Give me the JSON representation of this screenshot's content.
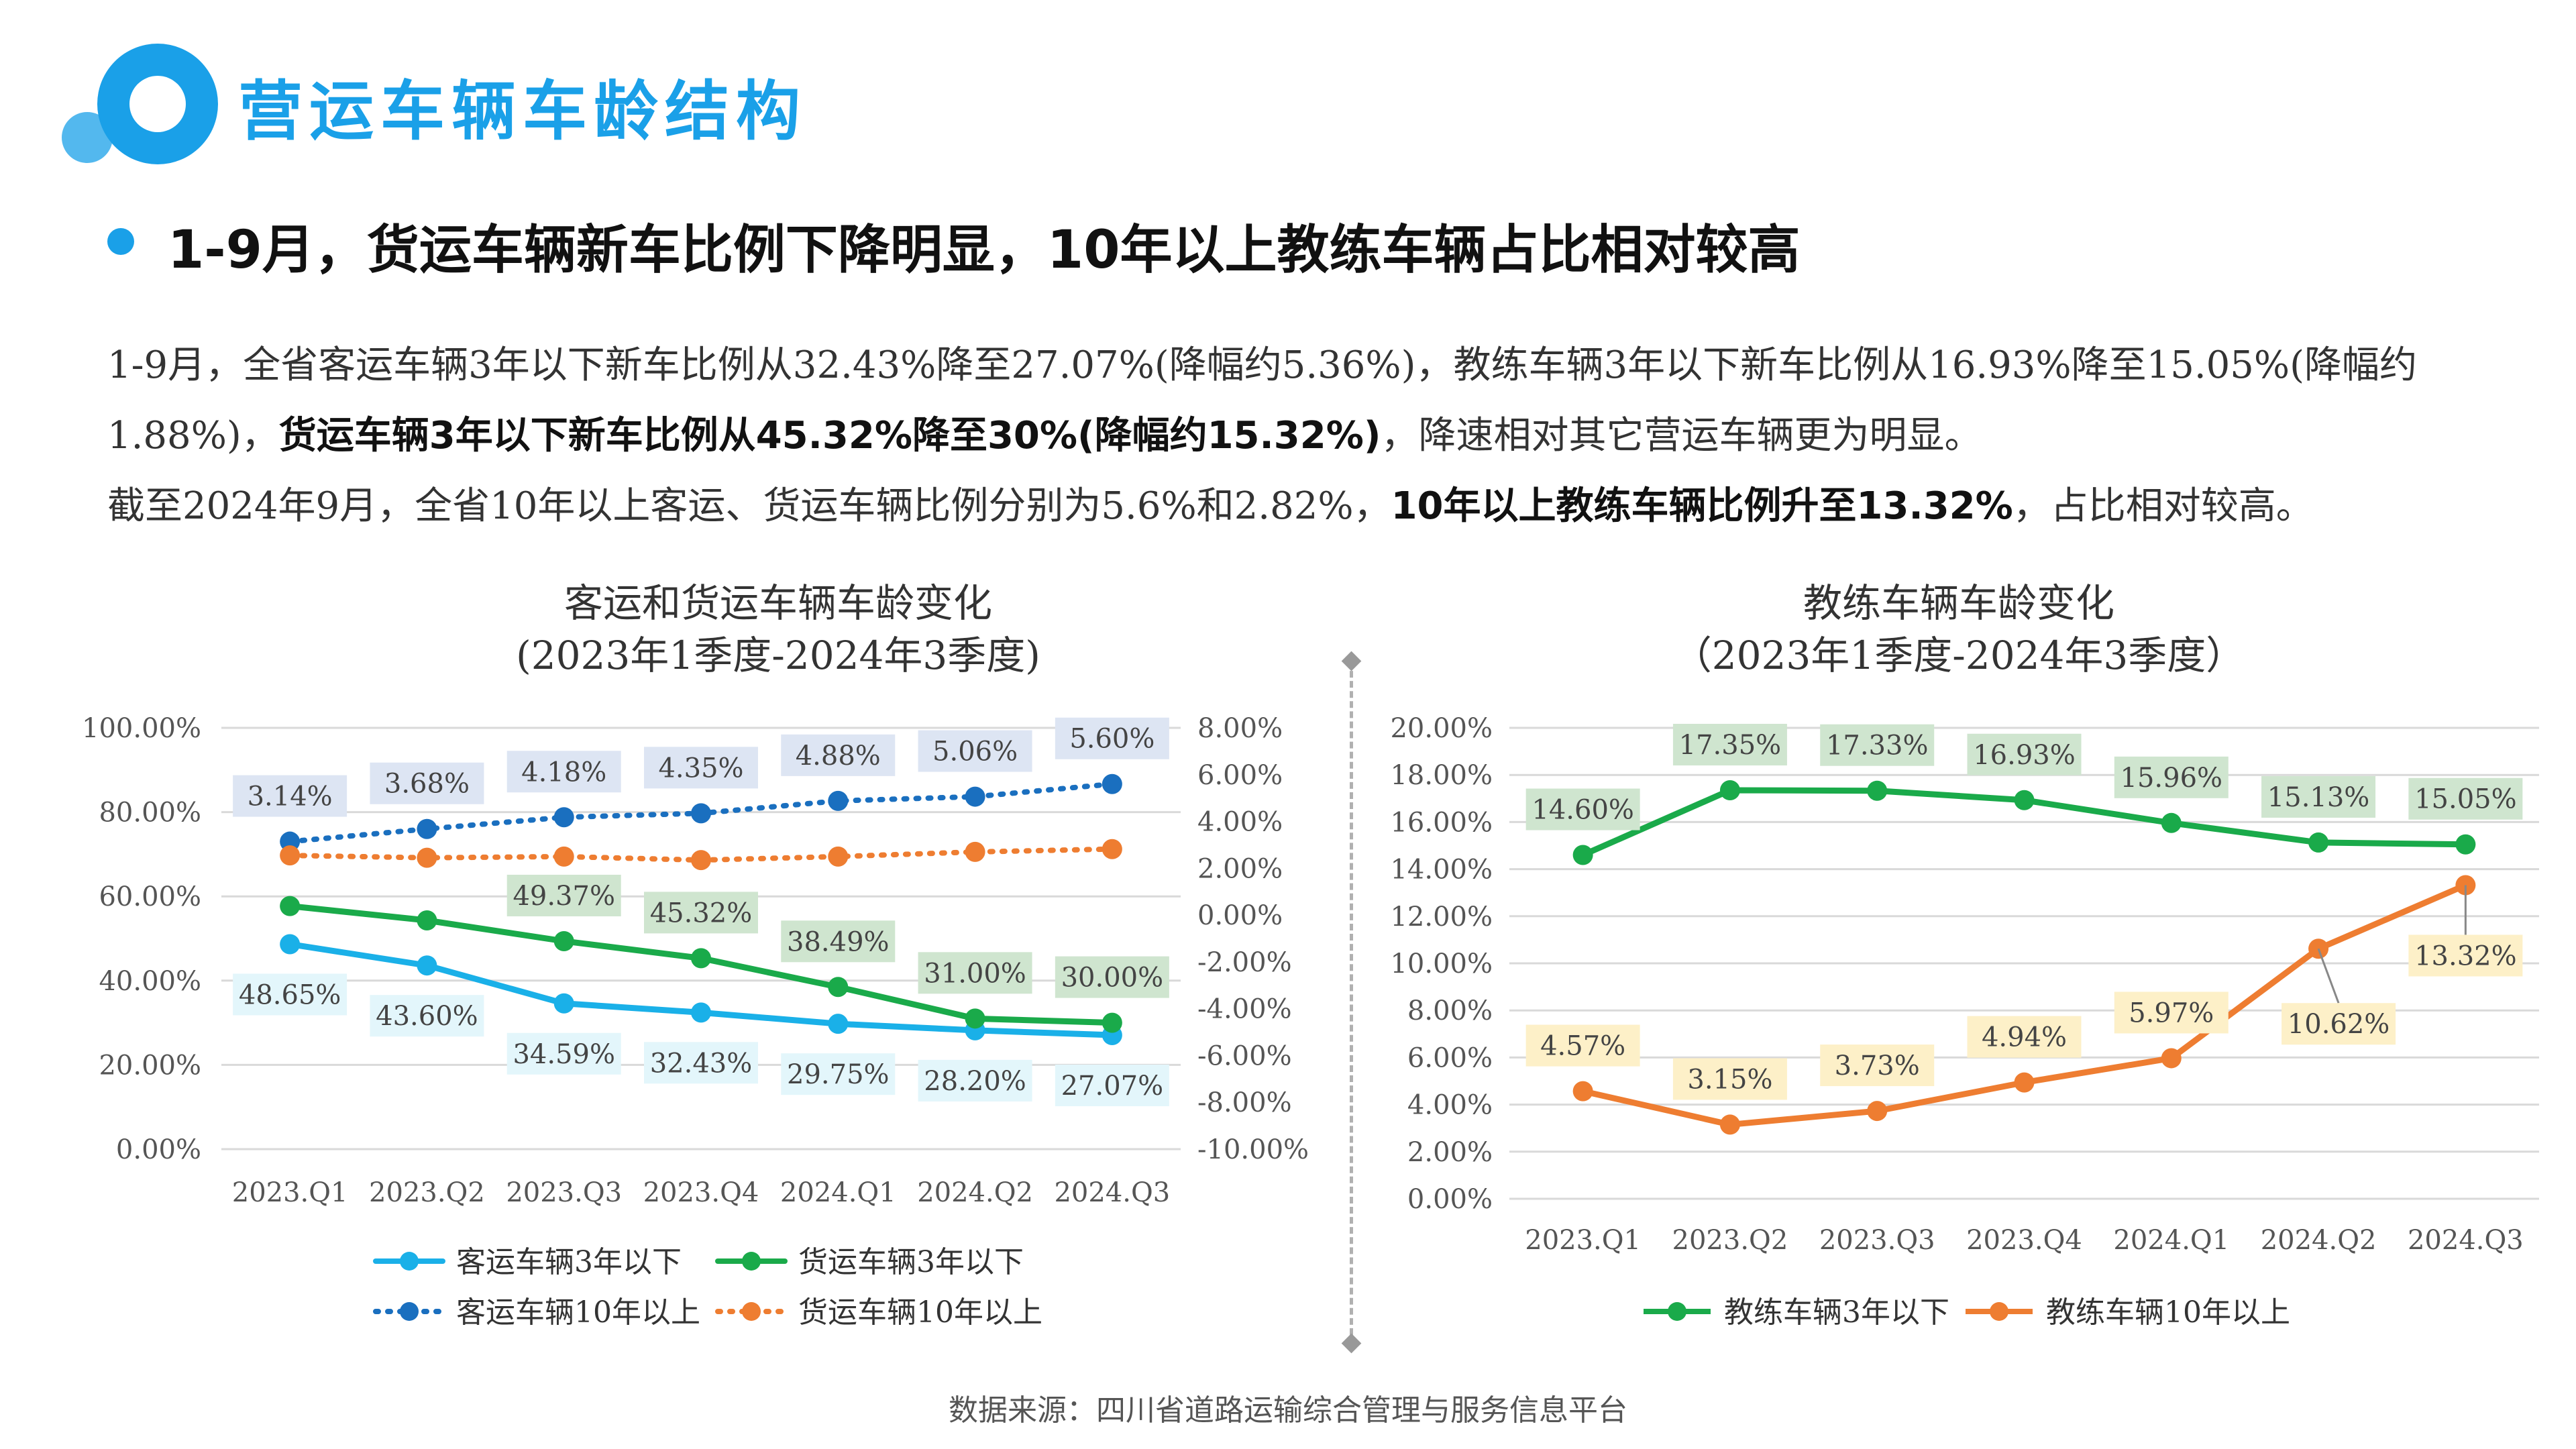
{
  "header": {
    "title": "营运车辆车龄结构",
    "subhead": "1-9月，货运车辆新车比例下降明显，10年以上教练车辆占比相对较高"
  },
  "body": {
    "p1_a": "1-9月，全省客运车辆3年以下新车比例从32.43%降至27.07%(降幅约5.36%)，教练车辆3年以下新车比例从16.93%降至15.05%(降幅约1.88%)，",
    "p1_b": "货运车辆3年以下新车比例从45.32%降至30%(降幅约15.32%)",
    "p1_c": "，降速相对其它营运车辆更为明显。",
    "p2_a": "截至2024年9月，全省10年以上客运、货运车辆比例分别为5.6%和2.82%，",
    "p2_b": "10年以上教练车辆比例升至13.32%",
    "p2_c": "，占比相对较高。"
  },
  "source": "数据来源：四川省道路运输综合管理与服务信息平台",
  "colors": {
    "brand": "#1aa0e8",
    "passenger_new": "#1ab0e8",
    "freight_new": "#1aaa4a",
    "passenger_old": "#1a6fbf",
    "freight_old": "#ee7d31",
    "coach_new": "#1aaa4a",
    "coach_old": "#ee7d31",
    "label_blue_bg": "#dde5f3",
    "label_green_bg": "#cfe5cf",
    "label_cyan_bg": "#e3f6fb",
    "label_yellow_bg": "#fdf0c8"
  },
  "chart_data": [
    {
      "type": "line",
      "title": "客运和货运车辆车龄变化",
      "subtitle": "(2023年1季度-2024年3季度)",
      "categories": [
        "2023.Q1",
        "2023.Q2",
        "2023.Q3",
        "2023.Q4",
        "2024.Q1",
        "2024.Q2",
        "2024.Q3"
      ],
      "ylim": [
        0,
        100
      ],
      "y2lim": [
        -10,
        8
      ],
      "yticks": [
        "0.00%",
        "20.00%",
        "40.00%",
        "60.00%",
        "80.00%",
        "100.00%"
      ],
      "y2ticks": [
        "-10.00%",
        "-8.00%",
        "-6.00%",
        "-4.00%",
        "-2.00%",
        "0.00%",
        "2.00%",
        "4.00%",
        "6.00%",
        "8.00%"
      ],
      "grid": true,
      "legend_position": "bottom",
      "series": [
        {
          "name": "客运车辆3年以下",
          "axis": "left",
          "style": "solid",
          "values": [
            48.65,
            43.6,
            34.59,
            32.43,
            29.75,
            28.2,
            27.07
          ],
          "labels": [
            "48.65%",
            "43.60%",
            "34.59%",
            "32.43%",
            "29.75%",
            "28.20%",
            "27.07%"
          ]
        },
        {
          "name": "货运车辆3年以下",
          "axis": "left",
          "style": "solid",
          "values": [
            57.7,
            54.3,
            49.37,
            45.32,
            38.49,
            31.0,
            30.0
          ],
          "labels": [
            "",
            "",
            "49.37%",
            "45.32%",
            "38.49%",
            "31.00%",
            "30.00%"
          ]
        },
        {
          "name": "客运车辆10年以上",
          "axis": "right",
          "style": "dotted",
          "values": [
            3.14,
            3.68,
            4.18,
            4.35,
            4.88,
            5.06,
            5.6
          ],
          "labels": [
            "3.14%",
            "3.68%",
            "4.18%",
            "4.35%",
            "4.88%",
            "5.06%",
            "5.60%"
          ]
        },
        {
          "name": "货运车辆10年以上",
          "axis": "right",
          "style": "dotted",
          "values": [
            2.55,
            2.45,
            2.5,
            2.35,
            2.5,
            2.7,
            2.82
          ],
          "labels": [
            "",
            "",
            "",
            "",
            "",
            "",
            ""
          ]
        }
      ]
    },
    {
      "type": "line",
      "title": "教练车辆车龄变化",
      "subtitle": "（2023年1季度-2024年3季度）",
      "categories": [
        "2023.Q1",
        "2023.Q2",
        "2023.Q3",
        "2023.Q4",
        "2024.Q1",
        "2024.Q2",
        "2024.Q3"
      ],
      "ylim": [
        0,
        20
      ],
      "yticks": [
        "0.00%",
        "2.00%",
        "4.00%",
        "6.00%",
        "8.00%",
        "10.00%",
        "12.00%",
        "14.00%",
        "16.00%",
        "18.00%",
        "20.00%"
      ],
      "grid": true,
      "legend_position": "bottom",
      "series": [
        {
          "name": "教练车辆3年以下",
          "style": "solid",
          "values": [
            14.6,
            17.35,
            17.33,
            16.93,
            15.96,
            15.13,
            15.05
          ],
          "labels": [
            "14.60%",
            "17.35%",
            "17.33%",
            "16.93%",
            "15.96%",
            "15.13%",
            "15.05%"
          ]
        },
        {
          "name": "教练车辆10年以上",
          "style": "solid",
          "values": [
            4.57,
            3.15,
            3.73,
            4.94,
            5.97,
            10.62,
            13.32
          ],
          "labels": [
            "4.57%",
            "3.15%",
            "3.73%",
            "4.94%",
            "5.97%",
            "10.62%",
            "13.32%"
          ]
        }
      ]
    }
  ]
}
